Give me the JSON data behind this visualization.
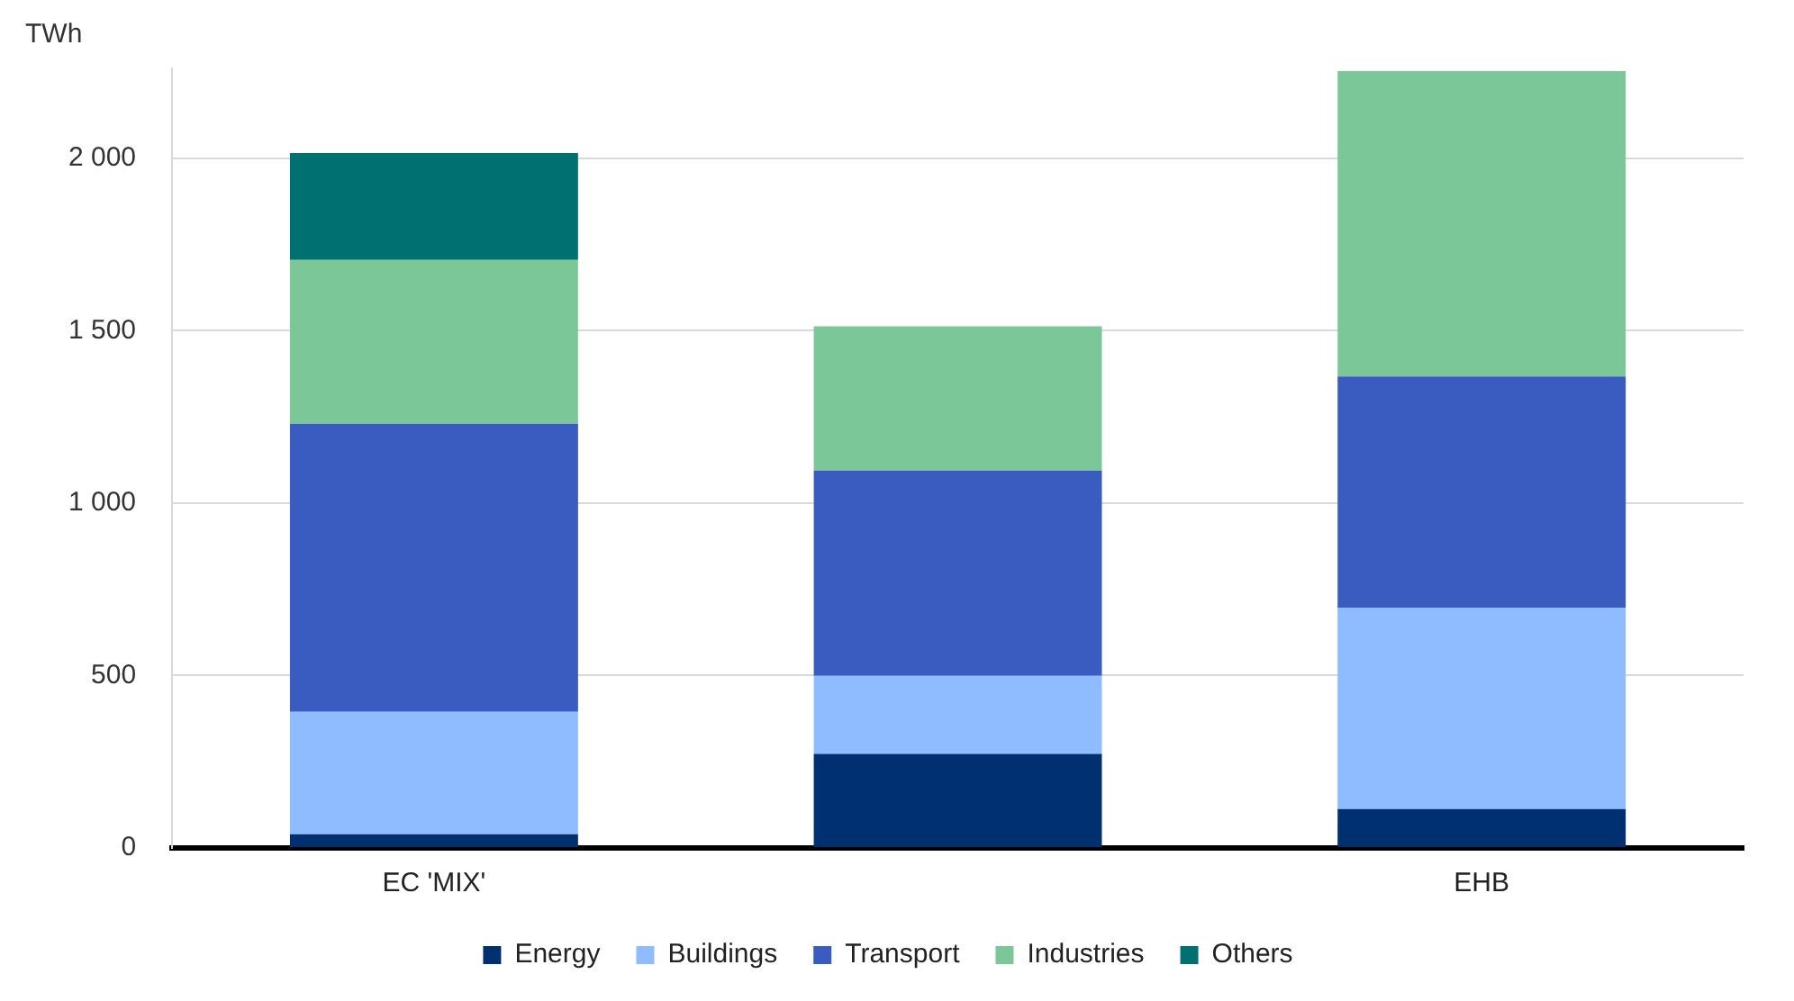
{
  "chart_data": {
    "type": "bar",
    "ylabel": "TWh",
    "categories": [
      "EC 'MIX'",
      null,
      "EHB"
    ],
    "stacked": true,
    "series": [
      {
        "name": "Energy",
        "color": "#003070",
        "values": [
          40,
          273,
          113
        ]
      },
      {
        "name": "Buildings",
        "color": "#8fbcff",
        "values": [
          355,
          226,
          584
        ]
      },
      {
        "name": "Transport",
        "color": "#3a5bbf",
        "values": [
          835,
          595,
          670
        ]
      },
      {
        "name": "Industries",
        "color": "#7cc797",
        "values": [
          475,
          418,
          885
        ]
      },
      {
        "name": "Others",
        "color": "#007070",
        "values": [
          310,
          null,
          null
        ]
      }
    ],
    "ylim": [
      0,
      2260
    ],
    "yticks": [
      0,
      {
        "value": 500,
        "label": "500"
      },
      {
        "value": 1000,
        "label": "1 000"
      },
      {
        "value": 1500,
        "label": "1 500"
      },
      {
        "value": 2000,
        "label": "2 000"
      }
    ],
    "grid": "y",
    "legend": "bottom"
  }
}
